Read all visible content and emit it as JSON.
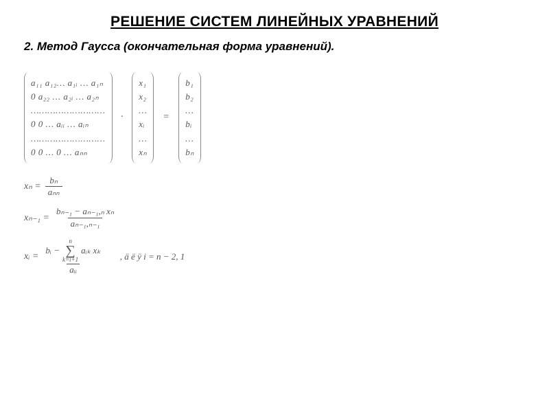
{
  "title": "РЕШЕНИЕ СИСТЕМ ЛИНЕЙНЫХ УРАВНЕНИЙ",
  "subtitle": "2. Метод Гаусса (окончательная форма уравнений).",
  "matrix_a": {
    "rows": [
      "a₁₁ a₁₂… a₁ᵢ … a₁ₙ",
      "0   a₂₂ … a₂ᵢ … a₂ₙ",
      "………………………",
      "0   0 … aᵢᵢ … aᵢₙ",
      "………………………",
      "0   0 …  0  … aₙₙ"
    ]
  },
  "vector_x": {
    "rows": [
      "x₁",
      "x₂",
      "…",
      "xᵢ",
      "…",
      "xₙ"
    ]
  },
  "vector_b": {
    "rows": [
      "b₁",
      "b₂",
      "…",
      "bᵢ",
      "…",
      "bₙ"
    ]
  },
  "op_dot": "·",
  "op_eq": "=",
  "eq_xn": {
    "lhs": "xₙ =",
    "num": "bₙ",
    "den": "aₙₙ"
  },
  "eq_xn1": {
    "lhs": "xₙ₋₁ =",
    "num": "bₙ₋₁ − aₙ₋₁,ₙ xₙ",
    "den": "aₙ₋₁,ₙ₋₁"
  },
  "eq_xi": {
    "lhs_var": "xᵢ =",
    "num_left": "bᵢ −",
    "sum_top": "n",
    "sum_bot": "k=i+1",
    "sum_body": "aᵢₖ xₖ",
    "den": "aᵢᵢ",
    "trail": ",    ä ë ÿ    i = n − 2, 1"
  },
  "colors": {
    "text": "#000000",
    "math": "#555555",
    "bg": "#ffffff"
  }
}
